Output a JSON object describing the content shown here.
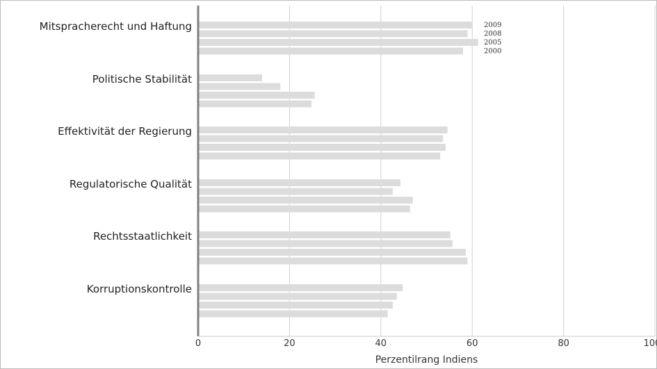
{
  "chart_data": {
    "type": "bar",
    "orientation": "horizontal",
    "categories": [
      "Mitspracherecht und Haftung",
      "Politische Stabilität",
      "Effektivität der Regierung",
      "Regulatorische Qualität",
      "Rechtsstaatlichkeit",
      "Korruptionskontrolle"
    ],
    "series": [
      {
        "name": "2009",
        "values": [
          60.0,
          14.0,
          54.6,
          44.3,
          55.2,
          44.8
        ]
      },
      {
        "name": "2008",
        "values": [
          59.0,
          18.0,
          53.6,
          42.6,
          55.7,
          43.5
        ]
      },
      {
        "name": "2005",
        "values": [
          61.3,
          25.5,
          54.2,
          47.0,
          58.6,
          42.6
        ]
      },
      {
        "name": "2000",
        "values": [
          58.0,
          24.8,
          53.0,
          46.4,
          59.0,
          41.5
        ]
      }
    ],
    "xlabel": "Perzentilrang Indiens",
    "xlim": [
      0,
      100
    ],
    "xticks": [
      "0",
      "20",
      "40",
      "60",
      "80",
      "100"
    ],
    "grid": true,
    "bar_color": "#dcdcdc",
    "grid_color": "#d0d0d0",
    "axis_color": "#808080"
  }
}
